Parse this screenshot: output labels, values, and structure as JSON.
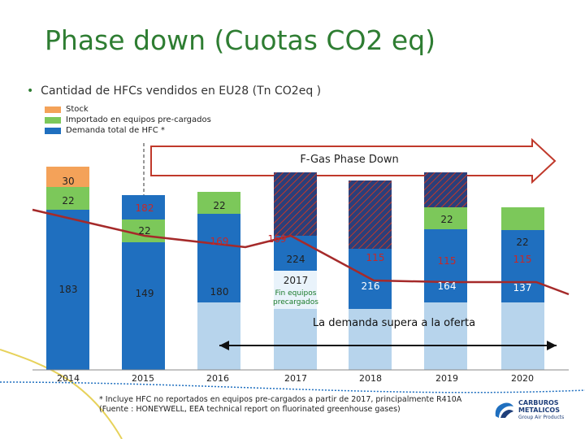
{
  "title": "Phase down (Cuotas CO2 eq)",
  "subtitle": "Cantidad de HFCs vendidos en EU28 (Tn CO2eq )",
  "bullet": "•",
  "legend": [
    {
      "label": "Stock",
      "color": "#f4a259"
    },
    {
      "label": "Importado en equipos pre-cargados",
      "color": "#7cc85a"
    },
    {
      "label": "Demanda total de HFC *",
      "color": "#1f6fbf"
    }
  ],
  "banner_text": "F-Gas Phase Down",
  "supply_demand_text": "La demanda supera a la oferta",
  "footnote": "* Incluye HFC no reportados en equipos pre-cargados a partir de 2017, principalmente R410A (Fuente : HONEYWELL, EEA technical report on fluorinated greenhouse gases)",
  "logo": {
    "line1": "CARBUROS",
    "line2": "METALICOS",
    "tagline": "Group Air Products"
  },
  "chart_data": {
    "type": "bar",
    "categories": [
      "2014",
      "2015",
      "2016",
      "2017",
      "2018",
      "2019",
      "2020"
    ],
    "segment_labels": [
      {
        "category": "2014",
        "labels": [
          "30",
          "22",
          "183"
        ]
      },
      {
        "category": "2015",
        "labels": [
          "182",
          "22",
          "149"
        ]
      },
      {
        "category": "2016",
        "labels": [
          "22",
          "169",
          "180"
        ]
      },
      {
        "category": "2017",
        "labels": [
          "169",
          "224",
          "2017",
          "Fin equipos precargados"
        ]
      },
      {
        "category": "2018",
        "labels": [
          "115",
          "216"
        ]
      },
      {
        "category": "2019",
        "labels": [
          "22",
          "115",
          "164"
        ]
      },
      {
        "category": "2020",
        "labels": [
          "22",
          "115",
          "137"
        ]
      }
    ],
    "colors": {
      "stock": "#f4a259",
      "imported": "#7cc85a",
      "demand": "#1f6fbf",
      "light": "#b7d4ec",
      "hatched": "#2b3f7a",
      "quota_line": "#a52a2a"
    }
  }
}
